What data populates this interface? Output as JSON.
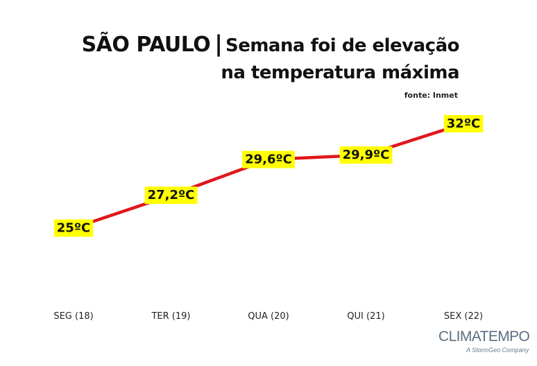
{
  "header": {
    "city": "SÃO PAULO",
    "separator": "|",
    "subtitle_line1": "Semana foi de elevação",
    "subtitle_line2": "na temperatura máxima",
    "source": "fonte: Inmet"
  },
  "logo": {
    "name": "CLIMATEMPO",
    "tagline": "A StormGeo Company"
  },
  "colors": {
    "line": "#e0171c",
    "label_bg": "#ffff00",
    "text": "#111111"
  },
  "chart_data": {
    "type": "line",
    "title": "SÃO PAULO | Semana foi de elevação na temperatura máxima",
    "categories": [
      "SEG (18)",
      "TER (19)",
      "QUA (20)",
      "QUI (21)",
      "SEX (22)"
    ],
    "values": [
      25,
      27.2,
      29.6,
      29.9,
      32
    ],
    "data_labels": [
      "25ºC",
      "27,2ºC",
      "29,6ºC",
      "29,9ºC",
      "32ºC"
    ],
    "unit": "ºC",
    "xlabel": "",
    "ylabel": "",
    "grid": false,
    "legend": "none"
  }
}
